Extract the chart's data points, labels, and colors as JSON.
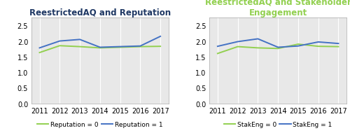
{
  "years": [
    2011,
    2012,
    2013,
    2014,
    2015,
    2016,
    2017
  ],
  "rep0": [
    1.63,
    1.85,
    1.82,
    1.78,
    1.8,
    1.82,
    1.83
  ],
  "rep1": [
    1.78,
    2.0,
    2.05,
    1.8,
    1.82,
    1.84,
    2.15
  ],
  "stak0": [
    1.6,
    1.82,
    1.78,
    1.76,
    1.9,
    1.83,
    1.82
  ],
  "stak1": [
    1.83,
    1.98,
    2.07,
    1.8,
    1.84,
    1.97,
    1.92
  ],
  "color0": "#92d050",
  "color1": "#4472c4",
  "title1": "ReestrictedAQ and Reputation",
  "title1_color": "#1f3864",
  "title2": "ReestrictedAQ and Stakeholder\nEngagement",
  "title2_color": "#92d050",
  "legend1_0": "Reputation = 0",
  "legend1_1": "Reputation = 1",
  "legend2_0": "StakEng = 0",
  "legend2_1": "StakEng = 1",
  "ylim": [
    0,
    2.75
  ],
  "yticks": [
    0,
    0.5,
    1.0,
    1.5,
    2.0,
    2.5
  ],
  "plot_bg_color": "#e8e8e8",
  "fig_bg_color": "#ffffff",
  "grid_color": "#ffffff",
  "title_fontsize": 8.5,
  "tick_fontsize": 7.0,
  "legend_fontsize": 6.5
}
